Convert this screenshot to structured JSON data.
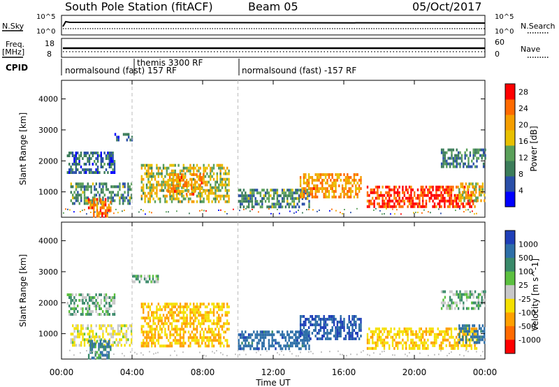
{
  "header": {
    "station": "South Pole Station (fitACF)",
    "beam": "Beam 05",
    "date": "05/Oct/2017"
  },
  "meta_panel": {
    "left_top": "N.Sky",
    "left_top_ticks": [
      "10^5",
      "10^0"
    ],
    "right_top": "N.Search",
    "right_top_ticks": [
      "10^5",
      "10^0"
    ],
    "left_mid_1": "Freq.",
    "left_mid_2": "[MHz]",
    "left_mid_ticks": [
      "18",
      "8"
    ],
    "right_mid": "Nave",
    "right_mid_ticks": [
      "60",
      "0"
    ],
    "cpid_label": "CPID",
    "cpid_segments": [
      {
        "label": "normalsound (fast) 157 RF",
        "start_h": 0,
        "end_h": 4
      },
      {
        "label": "themis 3300 RF",
        "start_h": 4,
        "end_h": 10
      },
      {
        "label": "normalsound (fast) -157 RF",
        "start_h": 10,
        "end_h": 24
      }
    ]
  },
  "x_axis": {
    "label": "Time UT",
    "ticks": [
      "00:00",
      "04:00",
      "08:00",
      "12:00",
      "16:00",
      "20:00",
      "00:00"
    ]
  },
  "colors": {
    "power_scale": [
      "#0000ff",
      "#2a4fa8",
      "#3c7d5a",
      "#5aa05a",
      "#e8c000",
      "#f59e00",
      "#ff6a00",
      "#ff0000"
    ],
    "velocity_scale": [
      "#1f3fb8",
      "#2e6fa8",
      "#3a8a6a",
      "#5cc040",
      "#c8c8c8",
      "#f5e000",
      "#ffa000",
      "#ff6a00",
      "#ff0000"
    ]
  },
  "chart_data": [
    {
      "type": "heatmap",
      "title": "",
      "xlabel": "",
      "ylabel": "Slant Range [km]",
      "xlim": [
        0,
        24
      ],
      "ylim": [
        180,
        4600
      ],
      "y_ticks": [
        "1000",
        "2000",
        "3000",
        "4000"
      ],
      "grid": false,
      "colorbar": {
        "label": "Power [dB]",
        "ticks": [
          "4",
          "8",
          "12",
          "16",
          "20",
          "24",
          "28"
        ],
        "range": [
          0,
          30
        ]
      },
      "regions": [
        {
          "t": [
            0.5,
            4.0
          ],
          "r": [
            600,
            1300
          ],
          "value": 10
        },
        {
          "t": [
            0.3,
            3.0
          ],
          "r": [
            1600,
            2300
          ],
          "value": 6
        },
        {
          "t": [
            1.5,
            2.8
          ],
          "r": [
            200,
            800
          ],
          "value": 24
        },
        {
          "t": [
            3.0,
            4.0
          ],
          "r": [
            2700,
            2900
          ],
          "value": 6
        },
        {
          "t": [
            4.5,
            9.5
          ],
          "r": [
            700,
            1900
          ],
          "value": 16
        },
        {
          "t": [
            6.0,
            8.0
          ],
          "r": [
            900,
            1600
          ],
          "value": 22
        },
        {
          "t": [
            10.0,
            14.0
          ],
          "r": [
            500,
            1100
          ],
          "value": 10
        },
        {
          "t": [
            13.5,
            17.0
          ],
          "r": [
            800,
            1600
          ],
          "value": 22
        },
        {
          "t": [
            17.3,
            23.5
          ],
          "r": [
            500,
            1200
          ],
          "value": 28
        },
        {
          "t": [
            21.5,
            24.0
          ],
          "r": [
            1800,
            2400
          ],
          "value": 8
        },
        {
          "t": [
            22.5,
            24.0
          ],
          "r": [
            700,
            1300
          ],
          "value": 18
        }
      ]
    },
    {
      "type": "heatmap",
      "title": "",
      "xlabel": "Time UT",
      "ylabel": "Slant Range [km]",
      "xlim": [
        0,
        24
      ],
      "ylim": [
        180,
        4600
      ],
      "y_ticks": [
        "1000",
        "2000",
        "3000",
        "4000"
      ],
      "grid": false,
      "colorbar": {
        "label": "Velocity [m s^-1]",
        "ticks": [
          "1000",
          "500",
          "100",
          "25",
          "-25",
          "-100",
          "-500",
          "-1000"
        ]
      },
      "regions": [
        {
          "t": [
            0.3,
            3.0
          ],
          "r": [
            1600,
            2300
          ],
          "value": 0
        },
        {
          "t": [
            0.5,
            4.0
          ],
          "r": [
            600,
            1300
          ],
          "value": -100
        },
        {
          "t": [
            1.5,
            2.8
          ],
          "r": [
            200,
            800
          ],
          "value": 100
        },
        {
          "t": [
            4.0,
            5.5
          ],
          "r": [
            2700,
            2900
          ],
          "value": 0
        },
        {
          "t": [
            4.5,
            9.5
          ],
          "r": [
            600,
            2000
          ],
          "value": -500
        },
        {
          "t": [
            10.0,
            14.0
          ],
          "r": [
            500,
            1100
          ],
          "value": 300
        },
        {
          "t": [
            13.5,
            17.0
          ],
          "r": [
            800,
            1600
          ],
          "value": 500
        },
        {
          "t": [
            17.3,
            23.5
          ],
          "r": [
            500,
            1200
          ],
          "value": -400
        },
        {
          "t": [
            21.5,
            24.0
          ],
          "r": [
            1800,
            2400
          ],
          "value": 0
        },
        {
          "t": [
            22.5,
            24.0
          ],
          "r": [
            700,
            1300
          ],
          "value": 200
        }
      ]
    }
  ]
}
